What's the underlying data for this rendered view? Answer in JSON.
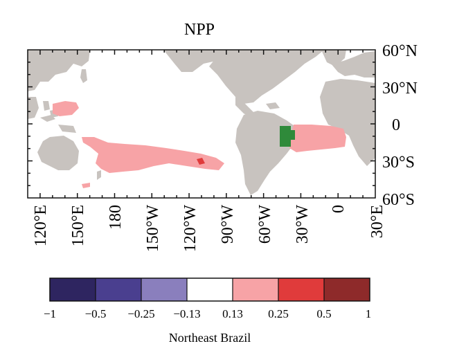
{
  "map": {
    "title": "NPP",
    "colorbar_title": "Northeast Brazil",
    "lat_labels": [
      "60°N",
      "30°N",
      "0",
      "30°S",
      "60°S"
    ],
    "lon_labels": [
      "120°E",
      "150°E",
      "180",
      "150°W",
      "120°W",
      "90°W",
      "60°W",
      "30°W",
      "0",
      "30°E"
    ],
    "lat_range": [
      -60,
      60
    ],
    "lon_range": [
      110,
      390
    ],
    "colors": {
      "land": "#c8c3bf",
      "ocean": "#ffffff",
      "anomaly_positive": "#f7a3a6",
      "anomaly_strong": "#e03b3b",
      "region_marker": "#2f8a3a"
    },
    "colorbar": {
      "ticks": [
        "−1",
        "−0.5",
        "−0.25",
        "−0.13",
        "0.13",
        "0.25",
        "0.5",
        "1"
      ],
      "colors": [
        "#2e2560",
        "#4a3f8f",
        "#8a7fbd",
        "#ffffff",
        "#f7a3a6",
        "#e03b3b",
        "#8e2a2a"
      ]
    }
  }
}
